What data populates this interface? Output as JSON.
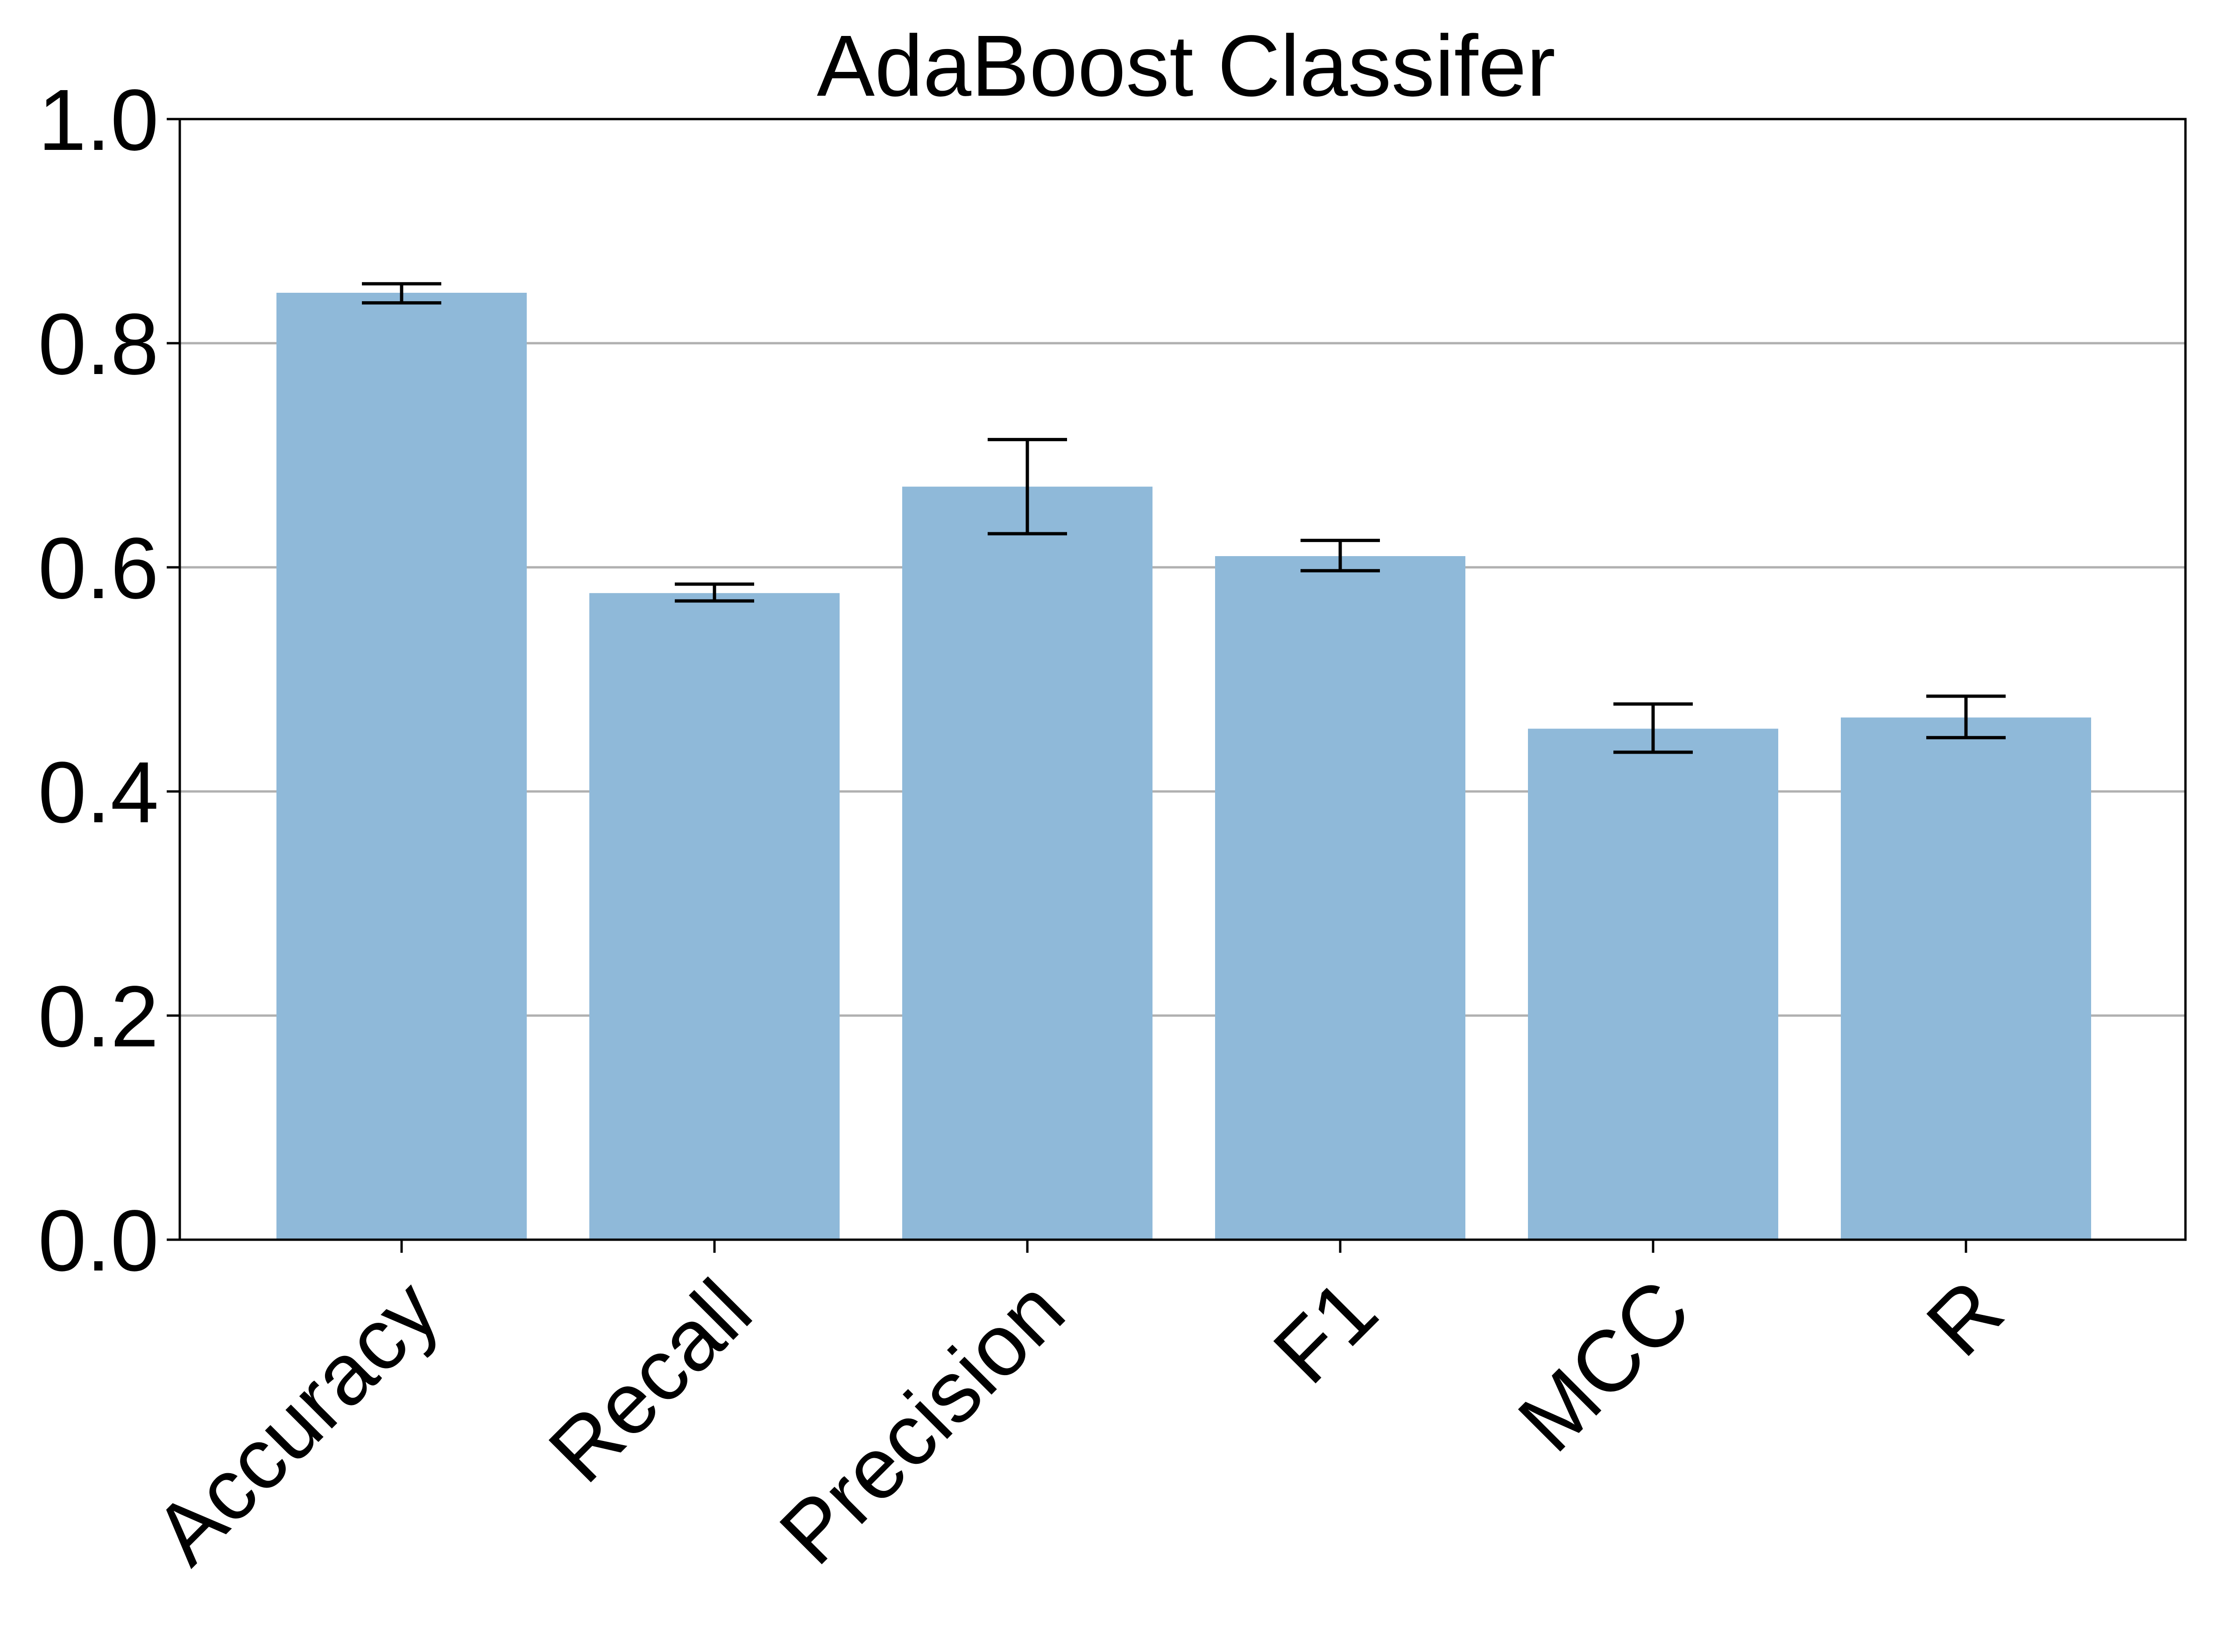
{
  "chart_data": {
    "type": "bar",
    "title": "AdaBoost Classifer",
    "xlabel": "",
    "ylabel": "",
    "categories": [
      "Accuracy",
      "Recall",
      "Precision",
      "F1",
      "MCC",
      "R"
    ],
    "values": [
      0.845,
      0.577,
      0.672,
      0.61,
      0.456,
      0.466
    ],
    "error_low": [
      0.836,
      0.57,
      0.63,
      0.597,
      0.435,
      0.448
    ],
    "error_high": [
      0.853,
      0.585,
      0.714,
      0.624,
      0.478,
      0.485
    ],
    "ylim": [
      0.0,
      1.0
    ],
    "yticks": [
      "0.0",
      "0.2",
      "0.4",
      "0.6",
      "0.8",
      "1.0"
    ],
    "grid": "y",
    "legend": "none",
    "bar_color": "#8fb9d9",
    "error_color": "#000000",
    "grid_color": "#b0b0b0"
  }
}
